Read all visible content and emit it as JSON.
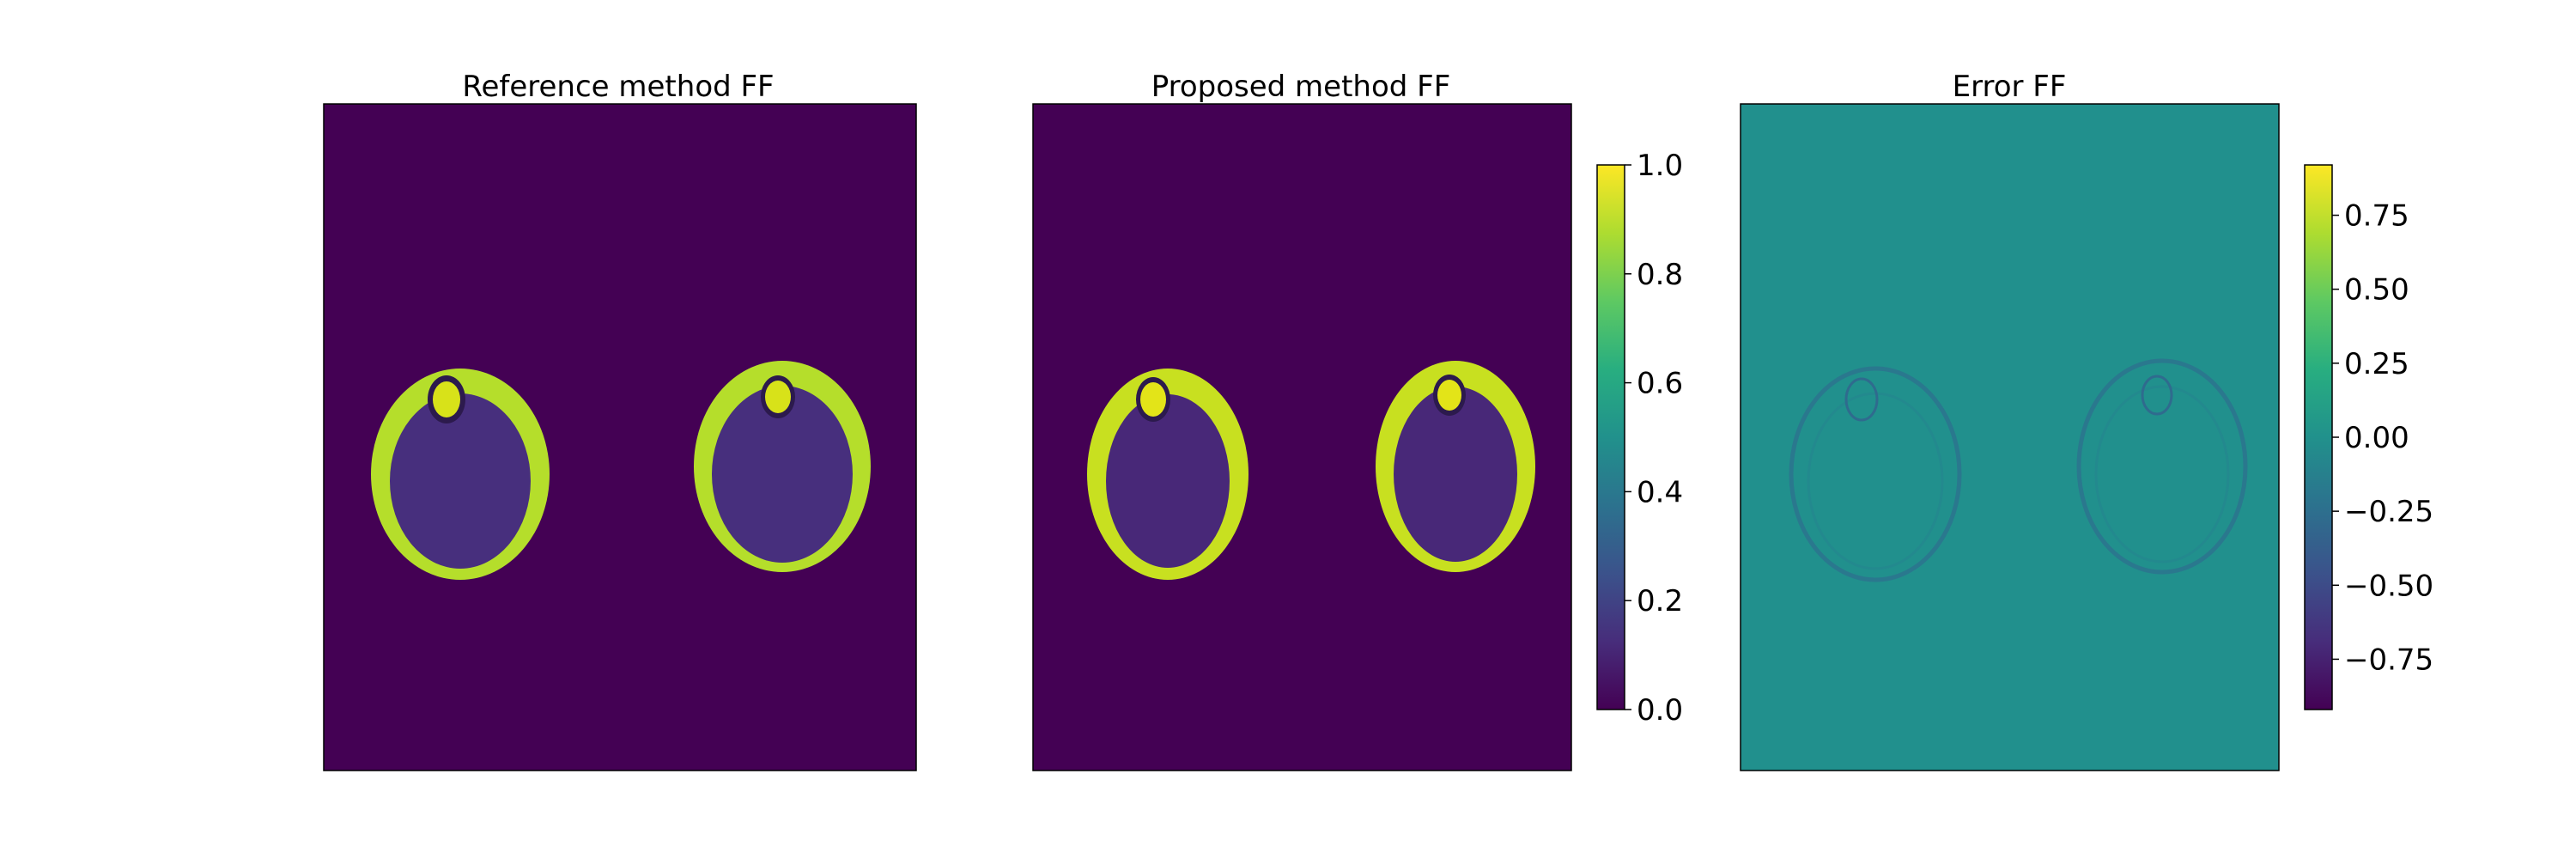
{
  "chart_data": [
    {
      "type": "heatmap",
      "title": "Reference method FF",
      "colormap": "viridis",
      "colorbar": false,
      "value_range": [
        0.0,
        1.0
      ],
      "background_value": 0.0,
      "content": "two roughly oval cross-sections of lower legs with a bright outer ring, bright small bone region near top, dark interior"
    },
    {
      "type": "heatmap",
      "title": "Proposed method FF",
      "colormap": "viridis",
      "colorbar": true,
      "value_range": [
        0.0,
        1.0
      ],
      "colorbar_ticks": [
        {
          "value": 0.0,
          "label": "0.0"
        },
        {
          "value": 0.2,
          "label": "0.2"
        },
        {
          "value": 0.4,
          "label": "0.4"
        },
        {
          "value": 0.6,
          "label": "0.6"
        },
        {
          "value": 0.8,
          "label": "0.8"
        },
        {
          "value": 1.0,
          "label": "1.0"
        }
      ],
      "background_value": 0.0
    },
    {
      "type": "heatmap",
      "title": "Error FF",
      "colormap": "viridis",
      "colorbar": true,
      "value_range": [
        -0.92,
        0.92
      ],
      "colorbar_ticks": [
        {
          "value": -0.75,
          "label": "−0.75"
        },
        {
          "value": -0.5,
          "label": "−0.50"
        },
        {
          "value": -0.25,
          "label": "−0.25"
        },
        {
          "value": 0.0,
          "label": "0.00"
        },
        {
          "value": 0.25,
          "label": "0.25"
        },
        {
          "value": 0.5,
          "label": "0.50"
        },
        {
          "value": 0.75,
          "label": "0.75"
        }
      ],
      "background_value": 0.0
    }
  ],
  "colors": {
    "viridis_low": "#440154",
    "viridis_mid": "#21918c",
    "viridis_high": "#fde725"
  }
}
